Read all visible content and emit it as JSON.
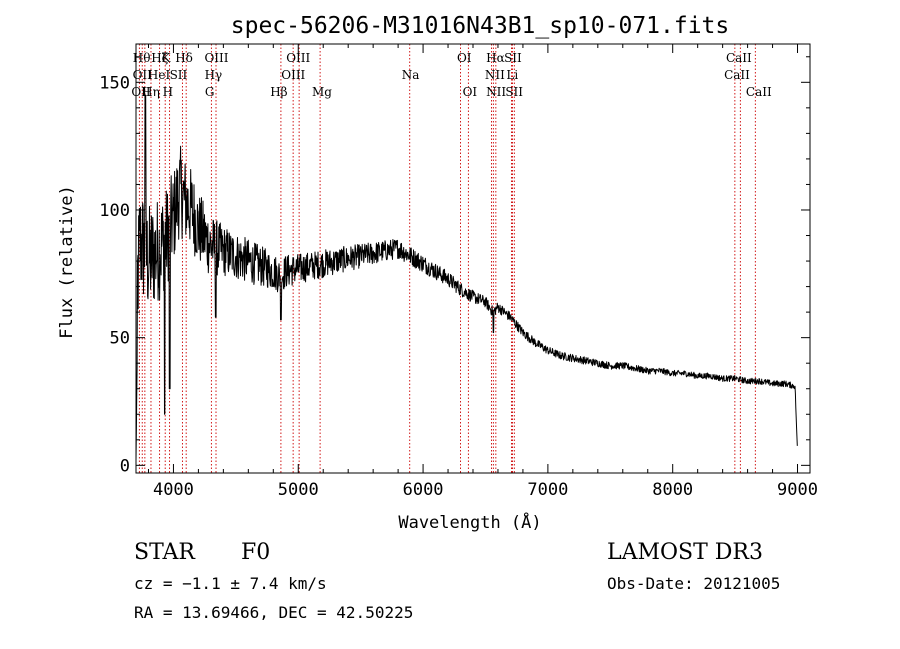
{
  "chart_data": {
    "type": "line",
    "title": "spec-56206-M31016N43B1_sp10-071.fits",
    "xlabel": "Wavelength (Å)",
    "ylabel": "Flux (relative)",
    "xlim": [
      3700,
      9100
    ],
    "ylim": [
      -3,
      165
    ],
    "xticks": [
      4000,
      5000,
      6000,
      7000,
      8000,
      9000
    ],
    "yticks": [
      0,
      50,
      100,
      150
    ],
    "continuum": {
      "x": [
        3700,
        3730,
        3760,
        3800,
        3850,
        3900,
        3950,
        4000,
        4050,
        4100,
        4150,
        4200,
        4300,
        4400,
        4500,
        4600,
        4700,
        4800,
        4860,
        4900,
        5000,
        5100,
        5200,
        5300,
        5400,
        5500,
        5600,
        5700,
        5800,
        5900,
        6000,
        6100,
        6200,
        6300,
        6400,
        6500,
        6560,
        6600,
        6700,
        6800,
        6900,
        7000,
        7100,
        7200,
        7300,
        7400,
        7500,
        7600,
        7700,
        7800,
        7900,
        8000,
        8100,
        8200,
        8300,
        8400,
        8500,
        8600,
        8700,
        8800,
        8900,
        8980,
        9000
      ],
      "y": [
        60,
        88,
        85,
        80,
        83,
        86,
        90,
        97,
        108,
        103,
        100,
        93,
        86,
        84,
        82,
        80,
        78,
        76,
        74,
        76,
        77,
        78,
        79,
        80,
        81,
        82,
        83,
        84,
        85,
        82,
        79,
        76,
        73,
        69,
        66,
        64,
        60,
        62,
        58,
        52,
        48,
        45,
        43,
        42,
        41,
        40,
        39,
        39,
        38,
        37,
        37,
        36,
        36,
        35,
        35,
        34,
        34,
        33,
        33,
        32,
        32,
        31,
        5
      ]
    },
    "noise_amplitude": {
      "x": [
        3700,
        4100,
        4400,
        5000,
        6000,
        6500,
        7000,
        8000,
        9000
      ],
      "y": [
        24,
        17,
        10,
        6,
        3.5,
        2.2,
        1.6,
        1.2,
        1.2
      ]
    },
    "lines": [
      {
        "wave": 3727,
        "labels": [
          "OII",
          "OII"
        ]
      },
      {
        "wave": 3750,
        "labels": [
          "Hθ"
        ]
      },
      {
        "wave": 3771,
        "labels": [
          "Hη"
        ]
      },
      {
        "wave": 3820,
        "labels": [
          "HeI"
        ]
      },
      {
        "wave": 3889,
        "labels": [
          "Hζ"
        ]
      },
      {
        "wave": 3934,
        "labels": [
          "K"
        ]
      },
      {
        "wave": 3969,
        "labels": [
          "H"
        ]
      },
      {
        "wave": 4072,
        "labels": [
          "SII"
        ]
      },
      {
        "wave": 4102,
        "labels": [
          "Hδ"
        ]
      },
      {
        "wave": 4304,
        "labels": [
          "G"
        ]
      },
      {
        "wave": 4341,
        "labels": [
          "OIII",
          "Hγ"
        ]
      },
      {
        "wave": 4861,
        "labels": [
          "Hβ"
        ]
      },
      {
        "wave": 4959,
        "labels": [
          "OIII"
        ]
      },
      {
        "wave": 5007,
        "labels": [
          "OIII"
        ]
      },
      {
        "wave": 5175,
        "labels": [
          "Mg"
        ]
      },
      {
        "wave": 5893,
        "labels": [
          "Na"
        ]
      },
      {
        "wave": 6300,
        "labels": [
          "OI"
        ]
      },
      {
        "wave": 6363,
        "labels": [
          "OI"
        ]
      },
      {
        "wave": 6548,
        "labels": [
          "NII"
        ]
      },
      {
        "wave": 6563,
        "labels": [
          "Hα"
        ]
      },
      {
        "wave": 6583,
        "labels": [
          "NII"
        ]
      },
      {
        "wave": 6708,
        "labels": [
          "Li"
        ]
      },
      {
        "wave": 6716,
        "labels": [
          "SII"
        ]
      },
      {
        "wave": 6731,
        "labels": [
          "SII"
        ]
      },
      {
        "wave": 8498,
        "labels": [
          "CaII"
        ]
      },
      {
        "wave": 8542,
        "labels": [
          "CaII"
        ]
      },
      {
        "wave": 8662,
        "labels": [
          "CaII"
        ]
      }
    ],
    "line_labels": [
      {
        "text": "Hθ",
        "wave": 3745,
        "row": 0
      },
      {
        "text": "Hζ",
        "wave": 3890,
        "row": 0
      },
      {
        "text": "K",
        "wave": 3940,
        "row": 0
      },
      {
        "text": "Hδ",
        "wave": 4085,
        "row": 0
      },
      {
        "text": "OIII",
        "wave": 4345,
        "row": 0
      },
      {
        "text": "OIII",
        "wave": 5000,
        "row": 0
      },
      {
        "text": "OI",
        "wave": 6330,
        "row": 0
      },
      {
        "text": "Hα",
        "wave": 6580,
        "row": 0
      },
      {
        "text": "SII",
        "wave": 6720,
        "row": 0
      },
      {
        "text": "CaII",
        "wave": 8530,
        "row": 0
      },
      {
        "text": "OII",
        "wave": 3750,
        "row": 1
      },
      {
        "text": "HeI",
        "wave": 3885,
        "row": 1
      },
      {
        "text": "SII",
        "wave": 4040,
        "row": 1
      },
      {
        "text": "Hγ",
        "wave": 4320,
        "row": 1
      },
      {
        "text": "OIII",
        "wave": 4960,
        "row": 1
      },
      {
        "text": "Na",
        "wave": 5900,
        "row": 1
      },
      {
        "text": "NII",
        "wave": 6575,
        "row": 1
      },
      {
        "text": "Li",
        "wave": 6715,
        "row": 1
      },
      {
        "text": "CaII",
        "wave": 8515,
        "row": 1
      },
      {
        "text": "OII",
        "wave": 3740,
        "row": 2
      },
      {
        "text": "Hη",
        "wave": 3820,
        "row": 2
      },
      {
        "text": "H",
        "wave": 3955,
        "row": 2
      },
      {
        "text": "G",
        "wave": 4290,
        "row": 2
      },
      {
        "text": "Hβ",
        "wave": 4845,
        "row": 2
      },
      {
        "text": "Mg",
        "wave": 5190,
        "row": 2
      },
      {
        "text": "OI",
        "wave": 6375,
        "row": 2
      },
      {
        "text": "NII",
        "wave": 6585,
        "row": 2
      },
      {
        "text": "SII",
        "wave": 6730,
        "row": 2
      },
      {
        "text": "CaII",
        "wave": 8690,
        "row": 2
      }
    ]
  },
  "info": {
    "class": "STAR",
    "subclass": "F0",
    "survey": "LAMOST DR3",
    "cz": "cz = −1.1 ± 7.4 km/s",
    "obs_date": "Obs-Date: 20121005",
    "coords": "RA =  13.69466, DEC =  42.50225"
  },
  "colors": {
    "spectrum": "#000000",
    "line_markers": "#cc0000"
  }
}
